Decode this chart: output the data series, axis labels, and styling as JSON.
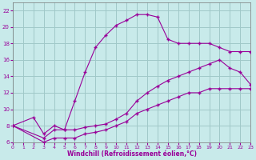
{
  "title": "",
  "xlabel": "Windchill (Refroidissement éolien,°C)",
  "ylabel": "",
  "bg_color": "#c8eaea",
  "grid_color": "#a0c8c8",
  "line_color": "#990099",
  "tick_color": "#990099",
  "marker": "+",
  "xlim": [
    0,
    23
  ],
  "ylim": [
    6,
    23
  ],
  "xticks": [
    0,
    1,
    2,
    3,
    4,
    5,
    6,
    7,
    8,
    9,
    10,
    11,
    12,
    13,
    14,
    15,
    16,
    17,
    18,
    19,
    20,
    21,
    22,
    23
  ],
  "yticks": [
    6,
    8,
    10,
    12,
    14,
    16,
    18,
    20,
    22
  ],
  "curve1_x": [
    0,
    2,
    3,
    4,
    5,
    6,
    7,
    8,
    9,
    10,
    11,
    12,
    13,
    14,
    15,
    16,
    17,
    18,
    19,
    20,
    21,
    22,
    23
  ],
  "curve1_y": [
    8,
    9,
    7,
    8,
    7.5,
    11,
    14.5,
    17.5,
    19,
    20.2,
    20.8,
    21.5,
    21.5,
    21.2,
    18.5,
    18,
    18,
    18,
    18,
    17.5,
    17,
    17,
    17
  ],
  "curve2_x": [
    0,
    3,
    4,
    5,
    6,
    7,
    8,
    9,
    10,
    11,
    12,
    13,
    14,
    15,
    16,
    17,
    18,
    19,
    20,
    21,
    22,
    23
  ],
  "curve2_y": [
    8,
    6.5,
    7.5,
    7.5,
    7.5,
    7.8,
    8,
    8.2,
    8.8,
    9.5,
    11,
    12,
    12.8,
    13.5,
    14,
    14.5,
    15,
    15.5,
    16,
    15,
    14.5,
    13
  ],
  "curve3_x": [
    0,
    3,
    4,
    5,
    6,
    7,
    8,
    9,
    10,
    11,
    12,
    13,
    14,
    15,
    16,
    17,
    18,
    19,
    20,
    21,
    22,
    23
  ],
  "curve3_y": [
    8,
    6,
    6.5,
    6.5,
    6.5,
    7,
    7.2,
    7.5,
    8,
    8.5,
    9.5,
    10,
    10.5,
    11,
    11.5,
    12,
    12,
    12.5,
    12.5,
    12.5,
    12.5,
    12.5
  ]
}
